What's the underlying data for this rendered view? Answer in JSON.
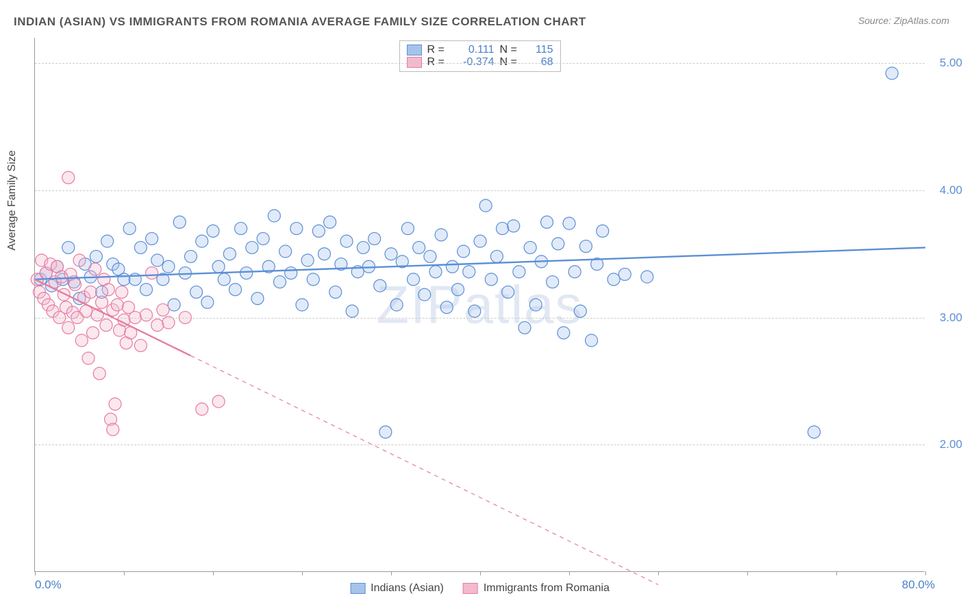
{
  "title": "INDIAN (ASIAN) VS IMMIGRANTS FROM ROMANIA AVERAGE FAMILY SIZE CORRELATION CHART",
  "source": "Source: ZipAtlas.com",
  "y_axis_label": "Average Family Size",
  "x_min_label": "0.0%",
  "x_max_label": "80.0%",
  "watermark": "ZIPatlas",
  "chart": {
    "type": "scatter",
    "xlim": [
      0,
      80
    ],
    "ylim": [
      1.0,
      5.2
    ],
    "y_ticks": [
      2.0,
      3.0,
      4.0,
      5.0
    ],
    "x_tick_step": 8,
    "background_color": "#ffffff",
    "grid_color": "#d0d0d0",
    "marker_radius": 9,
    "marker_fill_opacity": 0.35,
    "marker_stroke_width": 1.2,
    "line_width": 2.4
  },
  "series": [
    {
      "key": "blue",
      "label": "Indians (Asian)",
      "color": "#5b8fd6",
      "fill": "#a6c4ea",
      "R": "0.111",
      "N": "115",
      "trend": {
        "x1": 0,
        "y1": 3.3,
        "x2": 80,
        "y2": 3.55,
        "solid_until_x": 80
      },
      "points": [
        [
          0.5,
          3.3
        ],
        [
          1.0,
          3.35
        ],
        [
          1.5,
          3.25
        ],
        [
          2,
          3.4
        ],
        [
          2.5,
          3.3
        ],
        [
          3,
          3.55
        ],
        [
          3.5,
          3.28
        ],
        [
          4,
          3.15
        ],
        [
          4.5,
          3.42
        ],
        [
          5,
          3.32
        ],
        [
          5.5,
          3.48
        ],
        [
          6,
          3.2
        ],
        [
          6.5,
          3.6
        ],
        [
          7,
          3.42
        ],
        [
          7.5,
          3.38
        ],
        [
          8,
          3.3
        ],
        [
          8.5,
          3.7
        ],
        [
          9,
          3.3
        ],
        [
          9.5,
          3.55
        ],
        [
          10,
          3.22
        ],
        [
          10.5,
          3.62
        ],
        [
          11,
          3.45
        ],
        [
          11.5,
          3.3
        ],
        [
          12,
          3.4
        ],
        [
          12.5,
          3.1
        ],
        [
          13,
          3.75
        ],
        [
          13.5,
          3.35
        ],
        [
          14,
          3.48
        ],
        [
          14.5,
          3.2
        ],
        [
          15,
          3.6
        ],
        [
          15.5,
          3.12
        ],
        [
          16,
          3.68
        ],
        [
          16.5,
          3.4
        ],
        [
          17,
          3.3
        ],
        [
          17.5,
          3.5
        ],
        [
          18,
          3.22
        ],
        [
          18.5,
          3.7
        ],
        [
          19,
          3.35
        ],
        [
          19.5,
          3.55
        ],
        [
          20,
          3.15
        ],
        [
          20.5,
          3.62
        ],
        [
          21,
          3.4
        ],
        [
          21.5,
          3.8
        ],
        [
          22,
          3.28
        ],
        [
          22.5,
          3.52
        ],
        [
          23,
          3.35
        ],
        [
          23.5,
          3.7
        ],
        [
          24,
          3.1
        ],
        [
          24.5,
          3.45
        ],
        [
          25,
          3.3
        ],
        [
          25.5,
          3.68
        ],
        [
          26,
          3.5
        ],
        [
          26.5,
          3.75
        ],
        [
          27,
          3.2
        ],
        [
          27.5,
          3.42
        ],
        [
          28,
          3.6
        ],
        [
          28.5,
          3.05
        ],
        [
          29,
          3.36
        ],
        [
          29.5,
          3.55
        ],
        [
          30,
          3.4
        ],
        [
          30.5,
          3.62
        ],
        [
          31,
          3.25
        ],
        [
          31.5,
          2.1
        ],
        [
          32,
          3.5
        ],
        [
          32.5,
          3.1
        ],
        [
          33,
          3.44
        ],
        [
          33.5,
          3.7
        ],
        [
          34,
          3.3
        ],
        [
          34.5,
          3.55
        ],
        [
          35,
          3.18
        ],
        [
          35.5,
          3.48
        ],
        [
          36,
          3.36
        ],
        [
          36.5,
          3.65
        ],
        [
          37,
          3.08
        ],
        [
          37.5,
          3.4
        ],
        [
          38,
          3.22
        ],
        [
          38.5,
          3.52
        ],
        [
          39,
          3.36
        ],
        [
          39.5,
          3.05
        ],
        [
          40,
          3.6
        ],
        [
          40.5,
          3.88
        ],
        [
          41,
          3.3
        ],
        [
          41.5,
          3.48
        ],
        [
          42,
          3.7
        ],
        [
          42.5,
          3.2
        ],
        [
          43,
          3.72
        ],
        [
          43.5,
          3.36
        ],
        [
          44,
          2.92
        ],
        [
          44.5,
          3.55
        ],
        [
          45,
          3.1
        ],
        [
          45.5,
          3.44
        ],
        [
          46,
          3.75
        ],
        [
          46.5,
          3.28
        ],
        [
          47,
          3.58
        ],
        [
          47.5,
          2.88
        ],
        [
          48,
          3.74
        ],
        [
          48.5,
          3.36
        ],
        [
          49,
          3.05
        ],
        [
          49.5,
          3.56
        ],
        [
          50,
          2.82
        ],
        [
          50.5,
          3.42
        ],
        [
          51,
          3.68
        ],
        [
          52,
          3.3
        ],
        [
          53,
          3.34
        ],
        [
          55,
          3.32
        ],
        [
          70,
          2.1
        ],
        [
          77,
          4.92
        ]
      ]
    },
    {
      "key": "pink",
      "label": "Immigrants from Romania",
      "color": "#e77ba0",
      "fill": "#f4b9cd",
      "R": "-0.374",
      "N": "68",
      "trend": {
        "x1": 0,
        "y1": 3.3,
        "x2": 56,
        "y2": 0.9,
        "solid_until_x": 14
      },
      "points": [
        [
          0.2,
          3.3
        ],
        [
          0.4,
          3.2
        ],
        [
          0.6,
          3.45
        ],
        [
          0.8,
          3.15
        ],
        [
          1.0,
          3.35
        ],
        [
          1.2,
          3.1
        ],
        [
          1.4,
          3.42
        ],
        [
          1.6,
          3.05
        ],
        [
          1.8,
          3.28
        ],
        [
          2.0,
          3.4
        ],
        [
          2.2,
          3.0
        ],
        [
          2.4,
          3.32
        ],
        [
          2.6,
          3.18
        ],
        [
          2.8,
          3.08
        ],
        [
          3.0,
          2.92
        ],
        [
          3.0,
          4.1
        ],
        [
          3.2,
          3.34
        ],
        [
          3.4,
          3.04
        ],
        [
          3.6,
          3.26
        ],
        [
          3.8,
          3.0
        ],
        [
          4.0,
          3.45
        ],
        [
          4.2,
          2.82
        ],
        [
          4.4,
          3.16
        ],
        [
          4.6,
          3.05
        ],
        [
          4.8,
          2.68
        ],
        [
          5.0,
          3.2
        ],
        [
          5.2,
          2.88
        ],
        [
          5.4,
          3.38
        ],
        [
          5.6,
          3.02
        ],
        [
          5.8,
          2.56
        ],
        [
          6.0,
          3.12
        ],
        [
          6.2,
          3.3
        ],
        [
          6.4,
          2.94
        ],
        [
          6.6,
          3.22
        ],
        [
          6.8,
          2.2
        ],
        [
          7.0,
          2.12
        ],
        [
          7.0,
          3.06
        ],
        [
          7.2,
          2.32
        ],
        [
          7.4,
          3.1
        ],
        [
          7.6,
          2.9
        ],
        [
          7.8,
          3.2
        ],
        [
          8.0,
          2.98
        ],
        [
          8.2,
          2.8
        ],
        [
          8.4,
          3.08
        ],
        [
          8.6,
          2.88
        ],
        [
          9.0,
          3.0
        ],
        [
          9.5,
          2.78
        ],
        [
          10.0,
          3.02
        ],
        [
          10.5,
          3.35
        ],
        [
          11.0,
          2.94
        ],
        [
          11.5,
          3.06
        ],
        [
          12.0,
          2.96
        ],
        [
          13.5,
          3.0
        ],
        [
          15.0,
          2.28
        ],
        [
          16.5,
          2.34
        ]
      ]
    }
  ]
}
